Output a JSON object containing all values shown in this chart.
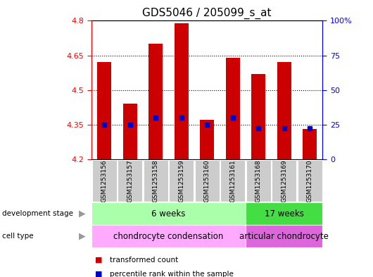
{
  "title": "GDS5046 / 205099_s_at",
  "samples": [
    "GSM1253156",
    "GSM1253157",
    "GSM1253158",
    "GSM1253159",
    "GSM1253160",
    "GSM1253161",
    "GSM1253168",
    "GSM1253169",
    "GSM1253170"
  ],
  "bar_values": [
    4.62,
    4.44,
    4.7,
    4.79,
    4.37,
    4.64,
    4.57,
    4.62,
    4.33
  ],
  "percentile_values": [
    4.35,
    4.35,
    4.38,
    4.38,
    4.35,
    4.38,
    4.335,
    4.335,
    4.335
  ],
  "bar_bottom": 4.2,
  "ylim": [
    4.2,
    4.8
  ],
  "yticks_left": [
    4.2,
    4.35,
    4.5,
    4.65,
    4.8
  ],
  "yticks_right": [
    0,
    25,
    50,
    75,
    100
  ],
  "bar_color": "#cc0000",
  "dot_color": "#0000cc",
  "background_color": "#ffffff",
  "title_fontsize": 11,
  "dev_stage_groups": [
    {
      "label": "6 weeks",
      "start": 0,
      "end": 6,
      "color": "#aaffaa"
    },
    {
      "label": "17 weeks",
      "start": 6,
      "end": 9,
      "color": "#44dd44"
    }
  ],
  "cell_type_groups": [
    {
      "label": "chondrocyte condensation",
      "start": 0,
      "end": 6,
      "color": "#ffaaff"
    },
    {
      "label": "articular chondrocyte",
      "start": 6,
      "end": 9,
      "color": "#dd66dd"
    }
  ],
  "dev_stage_label": "development stage",
  "cell_type_label": "cell type",
  "legend_items": [
    {
      "label": "transformed count",
      "color": "#cc0000"
    },
    {
      "label": "percentile rank within the sample",
      "color": "#0000cc"
    }
  ]
}
